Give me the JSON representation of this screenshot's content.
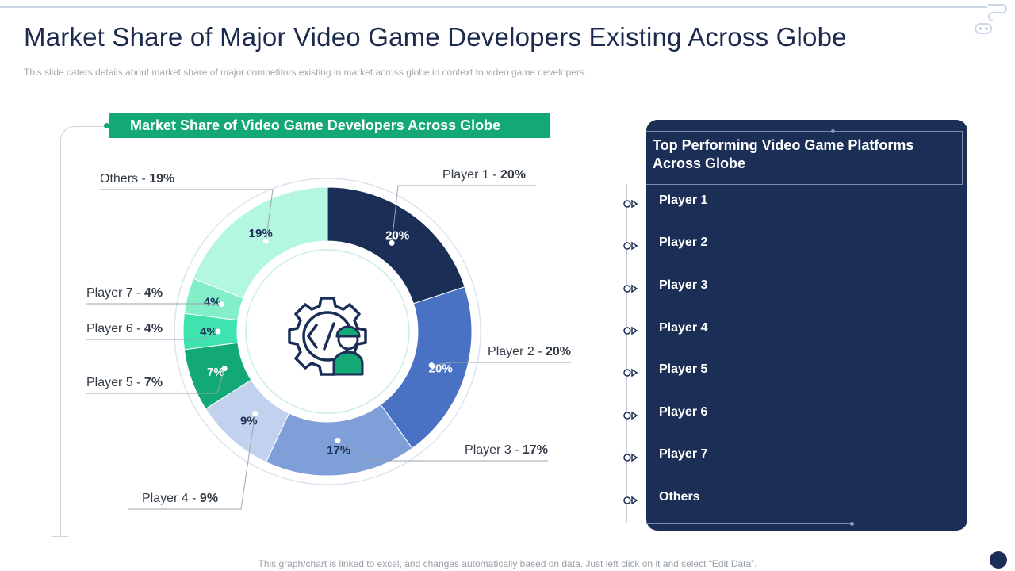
{
  "page": {
    "title": "Market Share of Major Video Game Developers Existing Across Globe",
    "subtitle": "This slide caters details about market share of major competitors existing in market across globe in context to video  game developers.",
    "footer": "This graph/chart is linked to excel,  and changes automatically based on data. Just left click on it and select “Edit Data”."
  },
  "chart_data": {
    "type": "pie",
    "variant": "donut",
    "title": "Market Share of Video Game Developers Across Globe",
    "unit": "%",
    "slices": [
      {
        "name": "Player 1",
        "value": 20,
        "color": "#1b2e55"
      },
      {
        "name": "Player 2",
        "value": 20,
        "color": "#4a72c4"
      },
      {
        "name": "Player 3",
        "value": 17,
        "color": "#7f9fd8"
      },
      {
        "name": "Player 4",
        "value": 9,
        "color": "#c2d1ee"
      },
      {
        "name": "Player 5",
        "value": 7,
        "color": "#13a977"
      },
      {
        "name": "Player 6",
        "value": 4,
        "color": "#3fe3b0"
      },
      {
        "name": "Player 7",
        "value": 4,
        "color": "#82efc9"
      },
      {
        "name": "Others",
        "value": 19,
        "color": "#b3f7e0"
      }
    ]
  },
  "panel": {
    "title": "Top Performing Video Game Platforms Across Globe",
    "items": [
      "Player 1",
      "Player 2",
      "Player 3",
      "Player 4",
      "Player 5",
      "Player 6",
      "Player 7",
      "Others"
    ]
  },
  "colors": {
    "navy": "#1b2e55",
    "green": "#14a876",
    "title_text": "#1b2a4d",
    "muted_text": "#a2a7af"
  },
  "icons": {
    "center": "developer-gear-code-icon",
    "list_marker": "circle-arrow-icon",
    "corner": "gamepad-icon"
  }
}
